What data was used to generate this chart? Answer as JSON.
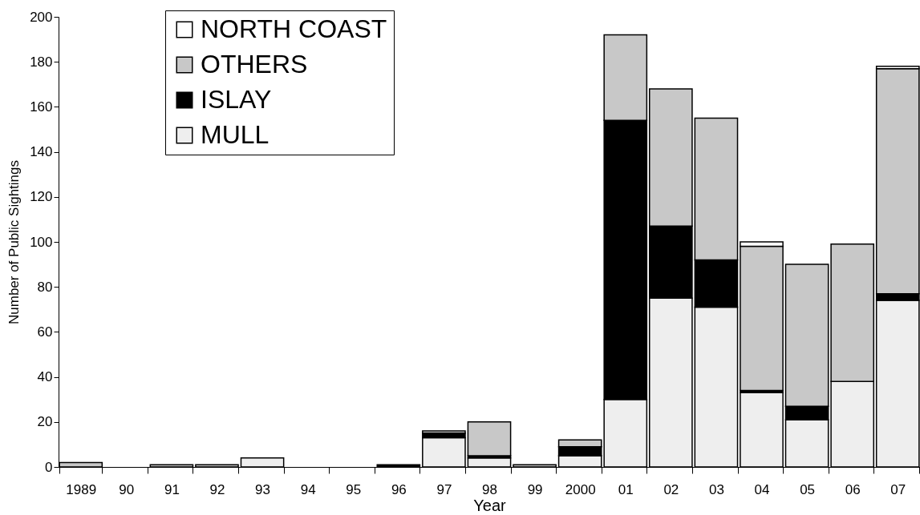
{
  "chart_data": {
    "type": "bar",
    "stacked": true,
    "xlabel": "Year",
    "ylabel": "Number of Public Sightings",
    "categories": [
      "1989",
      "90",
      "91",
      "92",
      "93",
      "94",
      "95",
      "96",
      "97",
      "98",
      "99",
      "2000",
      "01",
      "02",
      "03",
      "04",
      "05",
      "06",
      "07"
    ],
    "series": [
      {
        "name": "MULL",
        "color": "#eeeeee",
        "values": [
          null,
          null,
          null,
          null,
          4,
          null,
          null,
          null,
          13,
          4,
          null,
          5,
          30,
          75,
          71,
          33,
          21,
          38,
          74
        ]
      },
      {
        "name": "ISLAY",
        "color": "#000000",
        "values": [
          null,
          null,
          null,
          null,
          null,
          null,
          null,
          1,
          2,
          1,
          null,
          4,
          124,
          32,
          21,
          1,
          6,
          null,
          3
        ]
      },
      {
        "name": "OTHERS",
        "color": "#c8c8c8",
        "values": [
          2,
          null,
          1,
          1,
          null,
          null,
          null,
          null,
          1,
          15,
          1,
          3,
          38,
          61,
          63,
          64,
          63,
          61,
          100
        ]
      },
      {
        "name": "NORTH COAST",
        "color": "#ffffff",
        "values": [
          null,
          null,
          null,
          null,
          null,
          null,
          null,
          null,
          null,
          null,
          null,
          null,
          null,
          null,
          null,
          2,
          null,
          null,
          1
        ]
      }
    ],
    "ylim": [
      0,
      200
    ],
    "yticks": [
      0,
      20,
      40,
      60,
      80,
      100,
      120,
      140,
      160,
      180,
      200
    ],
    "grid": false,
    "legend": "top left"
  }
}
